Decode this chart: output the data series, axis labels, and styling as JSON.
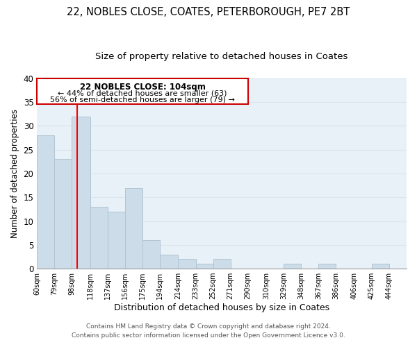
{
  "title": "22, NOBLES CLOSE, COATES, PETERBOROUGH, PE7 2BT",
  "subtitle": "Size of property relative to detached houses in Coates",
  "xlabel": "Distribution of detached houses by size in Coates",
  "ylabel": "Number of detached properties",
  "footer_line1": "Contains HM Land Registry data © Crown copyright and database right 2024.",
  "footer_line2": "Contains public sector information licensed under the Open Government Licence v3.0.",
  "bin_labels": [
    "60sqm",
    "79sqm",
    "98sqm",
    "118sqm",
    "137sqm",
    "156sqm",
    "175sqm",
    "194sqm",
    "214sqm",
    "233sqm",
    "252sqm",
    "271sqm",
    "290sqm",
    "310sqm",
    "329sqm",
    "348sqm",
    "367sqm",
    "386sqm",
    "406sqm",
    "425sqm",
    "444sqm"
  ],
  "bar_heights": [
    28,
    23,
    32,
    13,
    12,
    17,
    6,
    3,
    2,
    1,
    2,
    0,
    0,
    0,
    1,
    0,
    1,
    0,
    0,
    1
  ],
  "bar_color": "#ccdce8",
  "bar_edge_color": "#b0c4d4",
  "red_line_x": 104,
  "bin_edges": [
    60,
    79,
    98,
    118,
    137,
    156,
    175,
    194,
    214,
    233,
    252,
    271,
    290,
    310,
    329,
    348,
    367,
    386,
    406,
    425,
    444
  ],
  "annotation_title": "22 NOBLES CLOSE: 104sqm",
  "annotation_line2": "← 44% of detached houses are smaller (63)",
  "annotation_line3": "56% of semi-detached houses are larger (79) →",
  "annotation_box_color": "#ffffff",
  "annotation_border_color": "#cc0000",
  "ylim": [
    0,
    40
  ],
  "yticks": [
    0,
    5,
    10,
    15,
    20,
    25,
    30,
    35,
    40
  ],
  "grid_color": "#d8e4ee",
  "plot_bg_color": "#e8f0f8",
  "fig_bg_color": "#ffffff",
  "title_fontsize": 10.5,
  "subtitle_fontsize": 9.5
}
